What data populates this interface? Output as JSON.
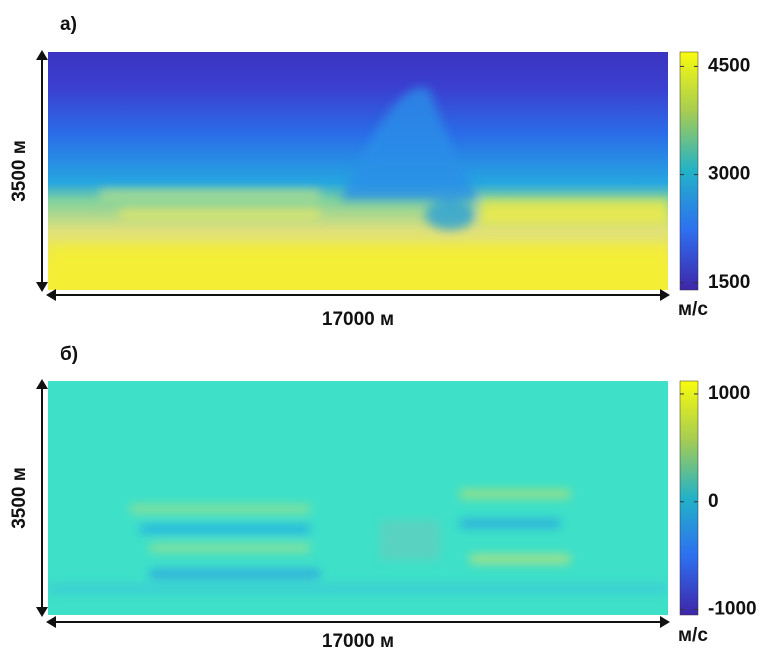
{
  "panels": [
    {
      "label": "а)",
      "y_label": "3500 м",
      "x_label": "17000 м",
      "unit": "м/с",
      "clim": [
        1400,
        4700
      ],
      "cticks": [
        1500,
        3000,
        4500
      ]
    },
    {
      "label": "б)",
      "y_label": "3500 м",
      "x_label": "17000 м",
      "unit": "м/с",
      "clim": [
        -1050,
        1120
      ],
      "cticks": [
        -1000,
        0,
        1000
      ]
    }
  ]
}
